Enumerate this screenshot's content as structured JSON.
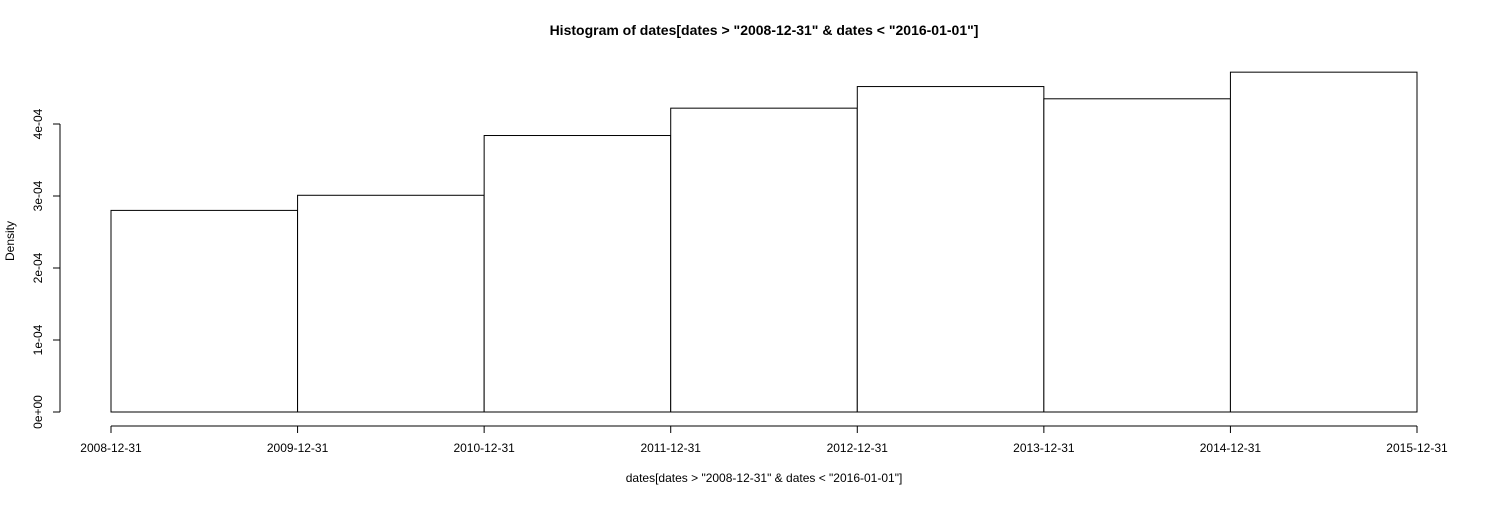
{
  "chart_data": {
    "type": "bar",
    "title": "Histogram of dates[dates > \"2008-12-31\" & dates < \"2016-01-01\"]",
    "xlabel": "dates[dates > \"2008-12-31\" & dates < \"2016-01-01\"]",
    "ylabel": "Density",
    "x_tick_labels": [
      "2008-12-31",
      "2009-12-31",
      "2010-12-31",
      "2011-12-31",
      "2012-12-31",
      "2013-12-31",
      "2014-12-31",
      "2015-12-31"
    ],
    "y_tick_values": [
      0,
      0.0001,
      0.0002,
      0.0003,
      0.0004
    ],
    "y_tick_labels": [
      "0e+00",
      "1e-04",
      "2e-04",
      "3e-04",
      "4e-04"
    ],
    "bins": [
      {
        "start": "2008-12-31",
        "end": "2009-12-31",
        "density": 0.00028
      },
      {
        "start": "2009-12-31",
        "end": "2010-12-31",
        "density": 0.000301
      },
      {
        "start": "2010-12-31",
        "end": "2011-12-31",
        "density": 0.000384
      },
      {
        "start": "2011-12-31",
        "end": "2012-12-31",
        "density": 0.000422
      },
      {
        "start": "2012-12-31",
        "end": "2013-12-31",
        "density": 0.000452
      },
      {
        "start": "2013-12-31",
        "end": "2014-12-31",
        "density": 0.000435
      },
      {
        "start": "2014-12-31",
        "end": "2015-12-31",
        "density": 0.000472
      }
    ],
    "grid": false,
    "bar_fill": "#ffffff",
    "bar_stroke": "#000000"
  }
}
